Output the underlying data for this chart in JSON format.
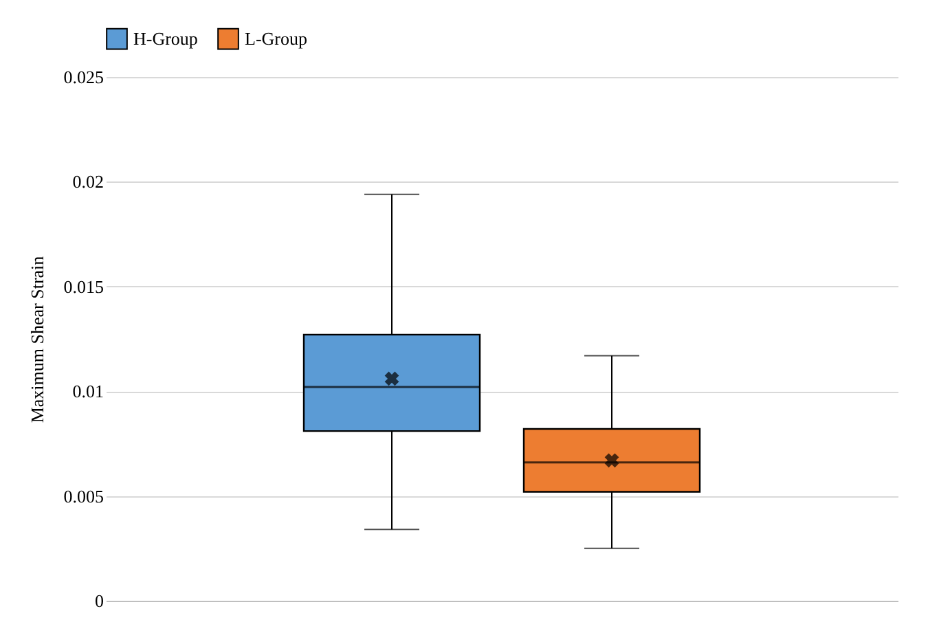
{
  "chart_data": {
    "type": "box",
    "ylabel": "Maximum  Shear Strain",
    "categories": [
      null
    ],
    "ylim": [
      0,
      0.025
    ],
    "yticks": [
      0,
      0.005,
      0.01,
      0.015,
      0.02,
      0.025
    ],
    "grid": "y",
    "legend": "top",
    "series": [
      {
        "name": "H-Group",
        "color": "#5b9bd5",
        "boxes": [
          {
            "low": 0.0034,
            "q1": 0.0081,
            "median": 0.0102,
            "q3": 0.0127,
            "high": 0.0194,
            "mean": 0.0106
          }
        ]
      },
      {
        "name": "L-Group",
        "color": "#ed7d31",
        "boxes": [
          {
            "low": 0.0025,
            "q1": 0.0052,
            "median": 0.0066,
            "q3": 0.0082,
            "high": 0.0117,
            "mean": 0.0067
          }
        ]
      }
    ]
  }
}
